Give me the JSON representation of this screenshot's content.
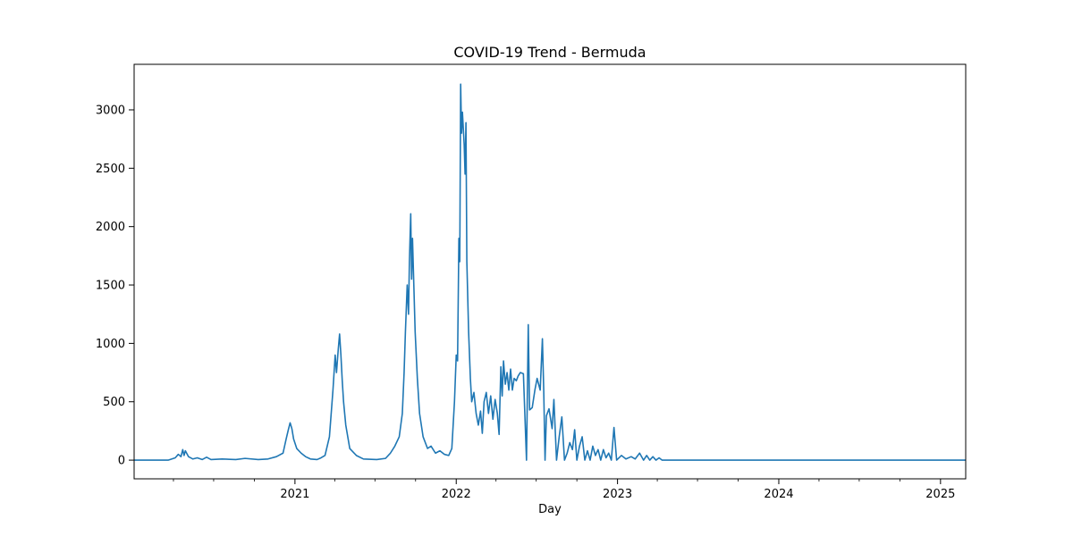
{
  "chart_data": {
    "type": "line",
    "title": "COVID-19 Trend - Bermuda",
    "xlabel": "Day",
    "ylabel": "",
    "x_axis": "date",
    "xlim": [
      "2020-01-03",
      "2025-02-27"
    ],
    "ylim": [
      -160,
      3390
    ],
    "grid": false,
    "legend": "none",
    "series_color": "#1f77b4",
    "x_ticks": [
      {
        "date": "2021-01-01",
        "label": "2021"
      },
      {
        "date": "2022-01-01",
        "label": "2022"
      },
      {
        "date": "2023-01-01",
        "label": "2023"
      },
      {
        "date": "2024-01-01",
        "label": "2024"
      },
      {
        "date": "2025-01-01",
        "label": "2025"
      }
    ],
    "x_minor_ticks": [
      "2020-04-01",
      "2020-07-01",
      "2020-10-01",
      "2021-04-01",
      "2021-07-01",
      "2021-10-01",
      "2022-04-01",
      "2022-07-01",
      "2022-10-01",
      "2023-04-01",
      "2023-07-01",
      "2023-10-01",
      "2024-04-01",
      "2024-07-01",
      "2024-10-01"
    ],
    "y_ticks": [
      0,
      500,
      1000,
      1500,
      2000,
      2500,
      3000
    ],
    "series": [
      {
        "points": [
          [
            "2020-01-03",
            0
          ],
          [
            "2020-03-20",
            0
          ],
          [
            "2020-04-05",
            20
          ],
          [
            "2020-04-12",
            50
          ],
          [
            "2020-04-18",
            30
          ],
          [
            "2020-04-22",
            90
          ],
          [
            "2020-04-25",
            40
          ],
          [
            "2020-04-28",
            80
          ],
          [
            "2020-05-05",
            30
          ],
          [
            "2020-05-15",
            10
          ],
          [
            "2020-05-25",
            20
          ],
          [
            "2020-06-05",
            5
          ],
          [
            "2020-06-15",
            25
          ],
          [
            "2020-06-25",
            5
          ],
          [
            "2020-07-20",
            10
          ],
          [
            "2020-08-20",
            5
          ],
          [
            "2020-09-10",
            15
          ],
          [
            "2020-10-10",
            5
          ],
          [
            "2020-11-01",
            10
          ],
          [
            "2020-11-20",
            30
          ],
          [
            "2020-12-05",
            60
          ],
          [
            "2020-12-12",
            180
          ],
          [
            "2020-12-17",
            260
          ],
          [
            "2020-12-21",
            320
          ],
          [
            "2020-12-25",
            270
          ],
          [
            "2020-12-29",
            180
          ],
          [
            "2021-01-05",
            100
          ],
          [
            "2021-01-15",
            60
          ],
          [
            "2021-01-25",
            30
          ],
          [
            "2021-02-05",
            10
          ],
          [
            "2021-02-20",
            5
          ],
          [
            "2021-03-01",
            20
          ],
          [
            "2021-03-10",
            40
          ],
          [
            "2021-03-20",
            200
          ],
          [
            "2021-03-28",
            600
          ],
          [
            "2021-04-02",
            900
          ],
          [
            "2021-04-05",
            750
          ],
          [
            "2021-04-09",
            950
          ],
          [
            "2021-04-12",
            1080
          ],
          [
            "2021-04-15",
            900
          ],
          [
            "2021-04-18",
            680
          ],
          [
            "2021-04-21",
            500
          ],
          [
            "2021-04-26",
            300
          ],
          [
            "2021-05-05",
            100
          ],
          [
            "2021-05-20",
            40
          ],
          [
            "2021-06-05",
            10
          ],
          [
            "2021-07-05",
            5
          ],
          [
            "2021-07-25",
            15
          ],
          [
            "2021-08-05",
            60
          ],
          [
            "2021-08-15",
            120
          ],
          [
            "2021-08-25",
            200
          ],
          [
            "2021-09-01",
            400
          ],
          [
            "2021-09-05",
            750
          ],
          [
            "2021-09-08",
            1100
          ],
          [
            "2021-09-12",
            1500
          ],
          [
            "2021-09-15",
            1250
          ],
          [
            "2021-09-17",
            1700
          ],
          [
            "2021-09-20",
            2110
          ],
          [
            "2021-09-22",
            1550
          ],
          [
            "2021-09-24",
            1900
          ],
          [
            "2021-09-27",
            1500
          ],
          [
            "2021-09-30",
            1100
          ],
          [
            "2021-10-05",
            700
          ],
          [
            "2021-10-10",
            400
          ],
          [
            "2021-10-18",
            200
          ],
          [
            "2021-10-28",
            100
          ],
          [
            "2021-11-05",
            120
          ],
          [
            "2021-11-15",
            60
          ],
          [
            "2021-11-25",
            80
          ],
          [
            "2021-12-05",
            50
          ],
          [
            "2021-12-15",
            40
          ],
          [
            "2021-12-22",
            100
          ],
          [
            "2021-12-28",
            500
          ],
          [
            "2022-01-01",
            900
          ],
          [
            "2022-01-04",
            850
          ],
          [
            "2022-01-07",
            1900
          ],
          [
            "2022-01-09",
            1700
          ],
          [
            "2022-01-11",
            3220
          ],
          [
            "2022-01-13",
            2800
          ],
          [
            "2022-01-15",
            2980
          ],
          [
            "2022-01-19",
            2700
          ],
          [
            "2022-01-21",
            2450
          ],
          [
            "2022-01-23",
            2890
          ],
          [
            "2022-01-25",
            1700
          ],
          [
            "2022-01-29",
            1100
          ],
          [
            "2022-02-02",
            700
          ],
          [
            "2022-02-05",
            500
          ],
          [
            "2022-02-10",
            580
          ],
          [
            "2022-02-15",
            400
          ],
          [
            "2022-02-20",
            300
          ],
          [
            "2022-02-25",
            420
          ],
          [
            "2022-03-01",
            230
          ],
          [
            "2022-03-05",
            500
          ],
          [
            "2022-03-10",
            580
          ],
          [
            "2022-03-15",
            400
          ],
          [
            "2022-03-20",
            550
          ],
          [
            "2022-03-25",
            350
          ],
          [
            "2022-03-30",
            520
          ],
          [
            "2022-04-04",
            400
          ],
          [
            "2022-04-08",
            220
          ],
          [
            "2022-04-12",
            800
          ],
          [
            "2022-04-15",
            550
          ],
          [
            "2022-04-18",
            850
          ],
          [
            "2022-04-22",
            650
          ],
          [
            "2022-04-26",
            750
          ],
          [
            "2022-04-30",
            600
          ],
          [
            "2022-05-04",
            780
          ],
          [
            "2022-05-08",
            600
          ],
          [
            "2022-05-12",
            700
          ],
          [
            "2022-05-17",
            680
          ],
          [
            "2022-05-21",
            720
          ],
          [
            "2022-05-26",
            750
          ],
          [
            "2022-06-02",
            740
          ],
          [
            "2022-06-09",
            0
          ],
          [
            "2022-06-13",
            1160
          ],
          [
            "2022-06-16",
            430
          ],
          [
            "2022-06-22",
            450
          ],
          [
            "2022-06-28",
            600
          ],
          [
            "2022-07-03",
            700
          ],
          [
            "2022-07-10",
            600
          ],
          [
            "2022-07-15",
            1040
          ],
          [
            "2022-07-18",
            600
          ],
          [
            "2022-07-21",
            0
          ],
          [
            "2022-07-24",
            380
          ],
          [
            "2022-07-30",
            440
          ],
          [
            "2022-08-06",
            270
          ],
          [
            "2022-08-10",
            520
          ],
          [
            "2022-08-16",
            0
          ],
          [
            "2022-08-22",
            200
          ],
          [
            "2022-08-28",
            370
          ],
          [
            "2022-09-03",
            0
          ],
          [
            "2022-09-09",
            60
          ],
          [
            "2022-09-15",
            150
          ],
          [
            "2022-09-21",
            90
          ],
          [
            "2022-09-26",
            260
          ],
          [
            "2022-10-01",
            0
          ],
          [
            "2022-10-07",
            120
          ],
          [
            "2022-10-13",
            200
          ],
          [
            "2022-10-19",
            0
          ],
          [
            "2022-10-25",
            80
          ],
          [
            "2022-10-31",
            0
          ],
          [
            "2022-11-06",
            120
          ],
          [
            "2022-11-12",
            40
          ],
          [
            "2022-11-18",
            90
          ],
          [
            "2022-11-24",
            0
          ],
          [
            "2022-11-30",
            90
          ],
          [
            "2022-12-06",
            20
          ],
          [
            "2022-12-12",
            60
          ],
          [
            "2022-12-18",
            0
          ],
          [
            "2022-12-24",
            280
          ],
          [
            "2022-12-30",
            0
          ],
          [
            "2023-01-10",
            40
          ],
          [
            "2023-01-20",
            10
          ],
          [
            "2023-02-01",
            30
          ],
          [
            "2023-02-10",
            10
          ],
          [
            "2023-02-20",
            60
          ],
          [
            "2023-03-01",
            0
          ],
          [
            "2023-03-08",
            40
          ],
          [
            "2023-03-15",
            0
          ],
          [
            "2023-03-22",
            30
          ],
          [
            "2023-03-29",
            0
          ],
          [
            "2023-04-05",
            20
          ],
          [
            "2023-04-12",
            0
          ],
          [
            "2025-02-27",
            0
          ]
        ]
      }
    ]
  }
}
